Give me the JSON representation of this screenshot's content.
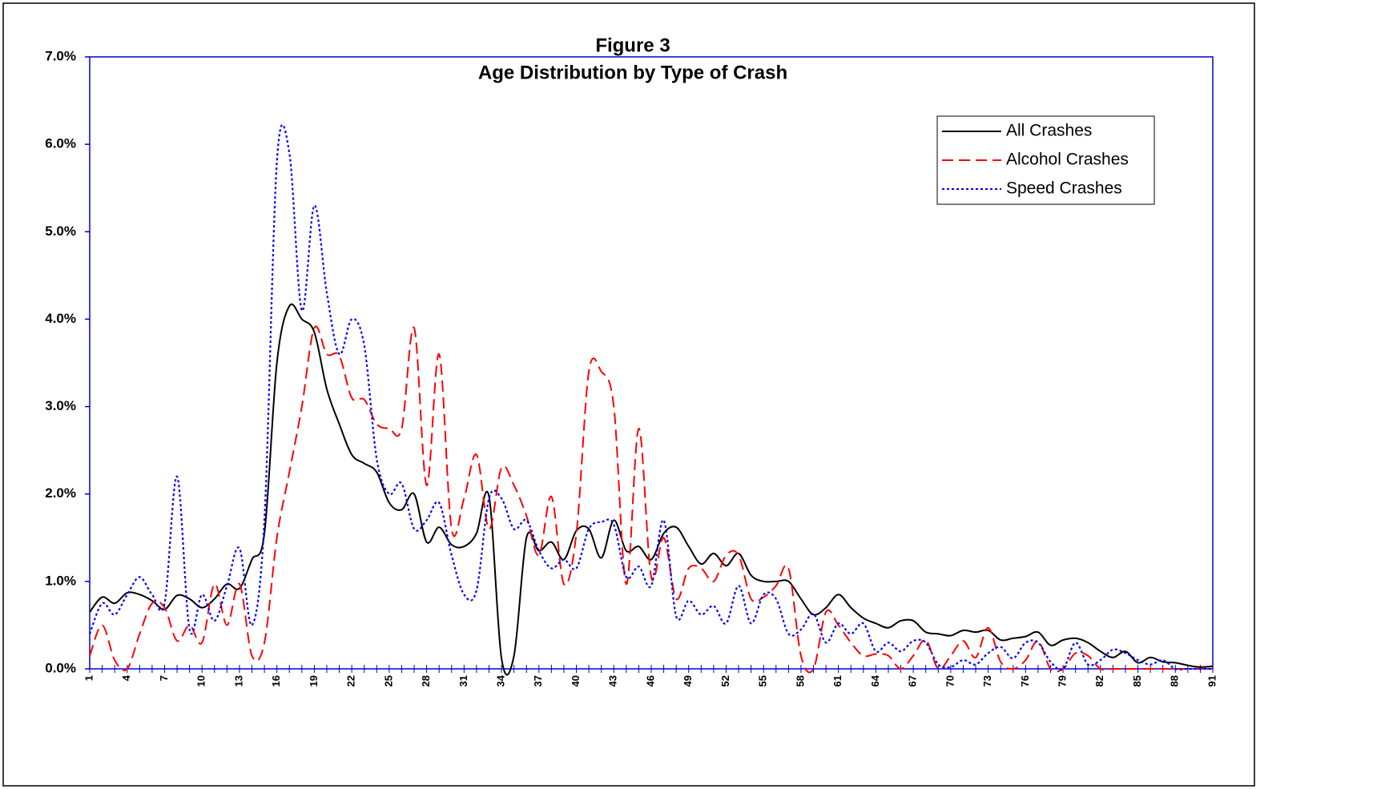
{
  "chart_data": {
    "type": "line",
    "title": "Figure 3",
    "subtitle": "Age Distribution by Type of Crash",
    "categories": [
      "1",
      null,
      null,
      "4",
      null,
      null,
      "7",
      null,
      null,
      "10",
      null,
      null,
      "13",
      null,
      null,
      "16",
      null,
      null,
      "19",
      null,
      null,
      "22",
      null,
      null,
      "25",
      null,
      null,
      "28",
      null,
      null,
      "31",
      null,
      null,
      "34",
      null,
      null,
      "37",
      null,
      null,
      "40",
      null,
      null,
      "43",
      null,
      null,
      "46",
      null,
      null,
      "49",
      null,
      null,
      "52",
      null,
      null,
      "55",
      null,
      null,
      "58",
      null,
      null,
      "61",
      null,
      null,
      "64",
      null,
      null,
      "67",
      null,
      null,
      "70",
      null,
      null,
      "73",
      null,
      null,
      "76",
      null,
      null,
      "79",
      null,
      null,
      "82",
      null,
      null,
      "85",
      null,
      null,
      "88",
      null,
      null,
      "91"
    ],
    "series": [
      {
        "name": "All Crashes",
        "color": "#000000",
        "dash": "solid",
        "values": [
          0.65,
          0.82,
          0.75,
          0.87,
          0.85,
          0.78,
          0.68,
          0.84,
          0.8,
          0.7,
          0.8,
          0.97,
          0.92,
          1.25,
          1.55,
          3.5,
          4.15,
          4.0,
          3.85,
          3.2,
          2.8,
          2.45,
          2.35,
          2.25,
          1.9,
          1.82,
          2.0,
          1.45,
          1.62,
          1.42,
          1.4,
          1.55,
          1.97,
          0.12,
          0.15,
          1.5,
          1.35,
          1.45,
          1.25,
          1.58,
          1.6,
          1.27,
          1.7,
          1.35,
          1.4,
          1.25,
          1.55,
          1.62,
          1.4,
          1.2,
          1.32,
          1.18,
          1.32,
          1.07,
          1.0,
          1.0,
          1.0,
          0.8,
          0.62,
          0.7,
          0.85,
          0.7,
          0.58,
          0.52,
          0.47,
          0.55,
          0.55,
          0.42,
          0.4,
          0.38,
          0.44,
          0.42,
          0.44,
          0.33,
          0.35,
          0.37,
          0.42,
          0.27,
          0.33,
          0.35,
          0.3,
          0.2,
          0.13,
          0.2,
          0.07,
          0.13,
          0.08,
          0.07,
          0.04,
          0.02,
          0.03
        ]
      },
      {
        "name": "Alcohol Crashes",
        "color": "#ff0000",
        "dash": "dashed",
        "values": [
          0.15,
          0.5,
          0.1,
          0,
          0.4,
          0.75,
          0.7,
          0.32,
          0.5,
          0.3,
          0.97,
          0.5,
          0.97,
          0.15,
          0.3,
          1.5,
          2.25,
          3.0,
          3.9,
          3.6,
          3.58,
          3.1,
          3.08,
          2.8,
          2.75,
          2.75,
          3.9,
          2.1,
          3.6,
          1.6,
          1.95,
          2.45,
          1.6,
          2.3,
          2.1,
          1.75,
          1.3,
          1.97,
          0.97,
          1.55,
          3.4,
          3.4,
          3.0,
          0.97,
          2.75,
          1.05,
          1.5,
          0.8,
          1.15,
          1.15,
          1.0,
          1.3,
          1.3,
          0.8,
          0.82,
          0.95,
          1.15,
          0.15,
          0,
          0.65,
          0.5,
          0.3,
          0.15,
          0.17,
          0.15,
          0,
          0.15,
          0.33,
          0,
          0.15,
          0.32,
          0.13,
          0.47,
          0.08,
          0,
          0.1,
          0.32,
          0,
          0,
          0.18,
          0.15,
          0,
          0,
          0,
          0,
          0,
          0,
          0,
          0,
          0,
          0
        ]
      },
      {
        "name": "Speed Crashes",
        "color": "#0000ff",
        "dash": "dotted",
        "values": [
          0.4,
          0.75,
          0.62,
          0.85,
          1.05,
          0.85,
          0.75,
          2.2,
          0.45,
          0.85,
          0.55,
          0.95,
          1.38,
          0.5,
          1.7,
          5.8,
          5.9,
          4.1,
          5.3,
          4.3,
          3.6,
          4.0,
          3.7,
          2.4,
          2.0,
          2.12,
          1.6,
          1.7,
          1.9,
          1.3,
          0.85,
          0.9,
          1.95,
          1.95,
          1.6,
          1.7,
          1.35,
          1.15,
          1.25,
          1.15,
          1.6,
          1.68,
          1.65,
          1.05,
          1.17,
          0.95,
          1.7,
          0.6,
          0.78,
          0.62,
          0.72,
          0.52,
          0.95,
          0.52,
          0.85,
          0.8,
          0.4,
          0.45,
          0.63,
          0.3,
          0.52,
          0.4,
          0.52,
          0.2,
          0.3,
          0.2,
          0.32,
          0.3,
          0.05,
          0.02,
          0.1,
          0.05,
          0.18,
          0.25,
          0.12,
          0.3,
          0.3,
          0.08,
          0,
          0.3,
          0.05,
          0.1,
          0.22,
          0.18,
          0.1,
          0.05,
          0.1,
          0,
          0,
          0,
          0
        ]
      }
    ],
    "ylim": [
      0,
      7
    ],
    "yticks": [
      {
        "value": 0,
        "label": "0.0%"
      },
      {
        "value": 1,
        "label": "1.0%"
      },
      {
        "value": 2,
        "label": "2.0%"
      },
      {
        "value": 3,
        "label": "3.0%"
      },
      {
        "value": 4,
        "label": "4.0%"
      },
      {
        "value": 5,
        "label": "5.0%"
      },
      {
        "value": 6,
        "label": "6.0%"
      },
      {
        "value": 7,
        "label": "7.0%"
      }
    ],
    "grid": false,
    "legend": "upper right"
  }
}
